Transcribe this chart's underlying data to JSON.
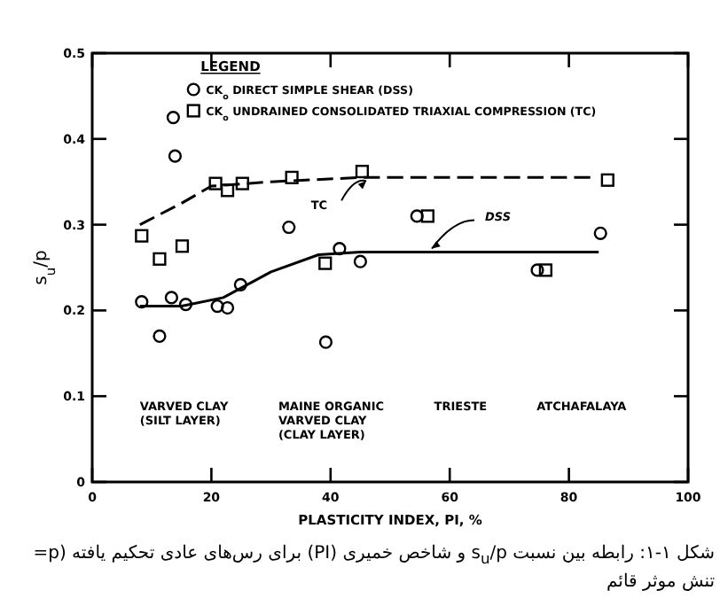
{
  "chart_data": {
    "type": "scatter",
    "xlabel": "PLASTICITY INDEX, PI, %",
    "ylabel": "s$_{u}$/p",
    "legend_title": "LEGEND",
    "xlim": [
      0,
      100
    ],
    "xticks": [
      0,
      20,
      40,
      60,
      80,
      100
    ],
    "ylim": [
      0,
      0.5
    ],
    "yticks": [
      0,
      0.1,
      0.2,
      0.3,
      0.4,
      0.5
    ],
    "grid": false,
    "legend": "top left",
    "series": [
      {
        "name": "CK$_{o}$ DIRECT SIMPLE SHEAR (DSS)",
        "marker": "circle",
        "color": "#000000",
        "x": [
          8.3,
          11.3,
          13.6,
          13.9,
          13.3,
          15.7,
          21,
          22.7,
          24.9,
          33,
          39.2,
          41.5,
          45,
          54.5,
          74.7,
          85.3
        ],
        "values": [
          0.21,
          0.17,
          0.425,
          0.38,
          0.215,
          0.207,
          0.205,
          0.203,
          0.23,
          0.297,
          0.163,
          0.272,
          0.257,
          0.31,
          0.247,
          0.29
        ]
      },
      {
        "name": "CK$_{o}$ UNDRAINED CONSOLIDATED TRIAXIAL COMPRESSION (TC)",
        "marker": "square",
        "color": "#000000",
        "x": [
          8.3,
          11.3,
          15.1,
          20.7,
          22.7,
          25.2,
          33.5,
          39.1,
          45.3,
          56.3,
          76.1,
          86.5
        ],
        "values": [
          0.287,
          0.26,
          0.275,
          0.348,
          0.34,
          0.348,
          0.355,
          0.255,
          0.362,
          0.31,
          0.247,
          0.352
        ]
      },
      {
        "type": "line",
        "line_style": "solid",
        "color": "#000000",
        "x": [
          8,
          15,
          22,
          30,
          38,
          45,
          85
        ],
        "values": [
          0.205,
          0.205,
          0.215,
          0.245,
          0.265,
          0.268,
          0.268
        ]
      },
      {
        "type": "line",
        "line_style": "dashed",
        "color": "#000000",
        "x": [
          8,
          15,
          20,
          30,
          45,
          60,
          83.6
        ],
        "values": [
          0.3,
          0.325,
          0.345,
          0.35,
          0.355,
          0.355,
          0.355
        ]
      }
    ],
    "annotations": [
      {
        "text": "TC",
        "x": 46,
        "y": 0.355
      },
      {
        "text": "DSS",
        "x": 57,
        "y": 0.268
      },
      "VARVED CLAY\n(SILT LAYER)",
      "MAINE ORGANIC\nVARVED CLAY\n(CLAY LAYER)",
      "TRIESTE",
      "ATCHAFALAYA",
      "شکل ۱-۱: رابطه بین نسبت s$_{u}$/p و شاخص خمیری (PI) برای رس‌های عادی تحکیم یافته (p= تنش موثر قائم"
    ]
  }
}
